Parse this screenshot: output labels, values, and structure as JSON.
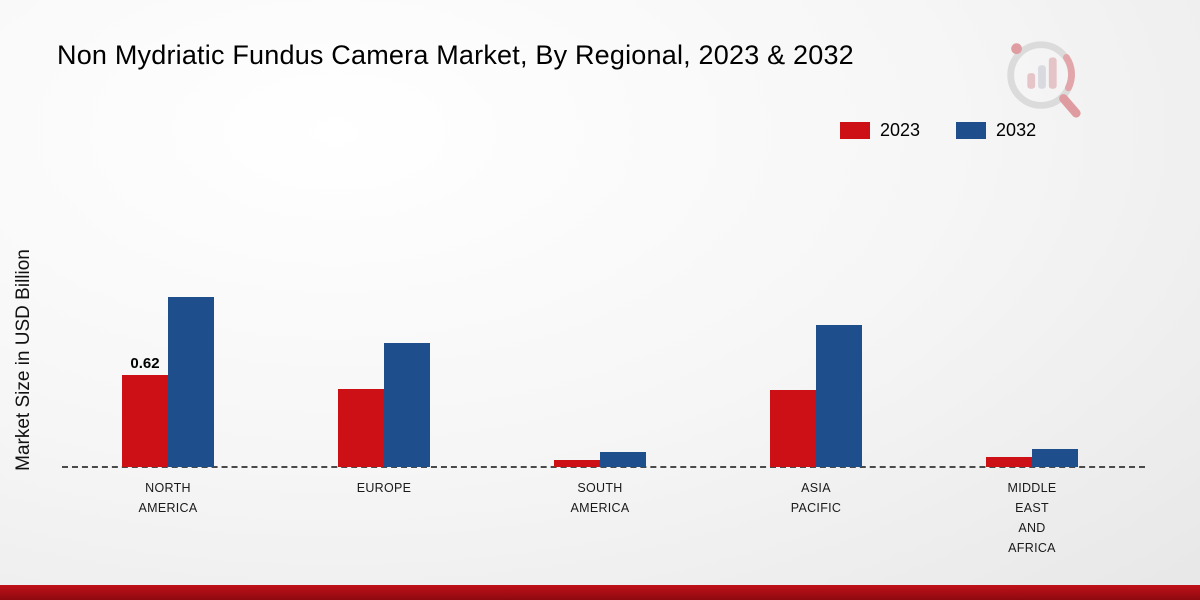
{
  "page": {
    "title": "Non Mydriatic Fundus Camera Market, By Regional, 2023 & 2032",
    "ylabel": "Market Size in USD Billion",
    "footer_bar_color": "#9e0b0f"
  },
  "legend": [
    {
      "label": "2023",
      "color": "#cc1016"
    },
    {
      "label": "2032",
      "color": "#1f4e8c"
    }
  ],
  "chart_data": {
    "type": "bar",
    "title": "Non Mydriatic Fundus Camera Market, By Regional, 2023 & 2032",
    "xlabel": "",
    "ylabel": "Market Size in USD Billion",
    "categories": [
      "NORTH AMERICA",
      "EUROPE",
      "SOUTH AMERICA",
      "ASIA PACIFIC",
      "MIDDLE EAST AND AFRICA"
    ],
    "category_lines": [
      [
        "NORTH",
        "AMERICA"
      ],
      [
        "EUROPE"
      ],
      [
        "SOUTH",
        "AMERICA"
      ],
      [
        "ASIA",
        "PACIFIC"
      ],
      [
        "MIDDLE",
        "EAST",
        "AND",
        "AFRICA"
      ]
    ],
    "series": [
      {
        "name": "2023",
        "color": "#cc1016",
        "values": [
          0.62,
          0.53,
          0.05,
          0.52,
          0.07
        ],
        "labels": [
          "0.62",
          null,
          null,
          null,
          null
        ]
      },
      {
        "name": "2032",
        "color": "#1f4e8c",
        "values": [
          1.15,
          0.84,
          0.1,
          0.96,
          0.12
        ],
        "labels": [
          null,
          null,
          null,
          null,
          null
        ]
      }
    ],
    "ylim": [
      0,
      1.3
    ],
    "grid": false,
    "baseline_style": "dashed",
    "legend_position": "top-right",
    "units": "USD Billion"
  }
}
